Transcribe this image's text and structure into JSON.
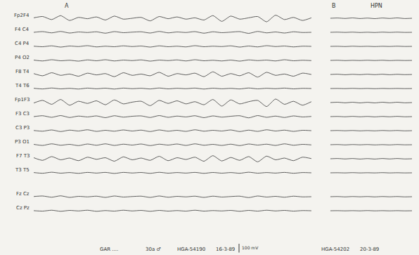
{
  "chart_data": [
    {
      "type": "line",
      "title": "A",
      "color": "#3a3a3a",
      "tick_labels": false,
      "x": [
        0,
        1,
        2,
        3,
        4,
        5,
        6,
        7,
        8,
        9,
        10,
        11,
        12,
        13,
        14,
        15,
        16,
        17,
        18,
        19,
        20,
        21,
        22,
        23,
        24,
        25,
        26,
        27,
        28,
        29,
        30,
        31
      ],
      "xlim": [
        0,
        31
      ],
      "ylim": [
        -80,
        80
      ],
      "calibration": {
        "value": 100,
        "label": "100 mV"
      },
      "footer": [
        "GAR ....",
        "30a ♂",
        "HGA-54190",
        "16-3-89"
      ],
      "series": [
        {
          "name": "Fp2F4",
          "values": [
            5,
            20,
            -15,
            30,
            -25,
            10,
            -5,
            15,
            -20,
            25,
            -10,
            0,
            10,
            -30,
            20,
            -5,
            15,
            -10,
            5,
            -20,
            30,
            -35,
            25,
            -10,
            5,
            20,
            -40,
            35,
            -15,
            10,
            -25,
            5
          ]
        },
        {
          "name": "F4 C4",
          "values": [
            0,
            8,
            -6,
            10,
            -8,
            4,
            -2,
            6,
            -10,
            8,
            -4,
            2,
            6,
            -8,
            10,
            -6,
            4,
            -2,
            8,
            -10,
            6,
            -4,
            2,
            8,
            -12,
            10,
            -6,
            4,
            -8,
            6,
            -2,
            0
          ]
        },
        {
          "name": "C4 P4",
          "values": [
            2,
            -4,
            6,
            -8,
            4,
            -2,
            8,
            -6,
            2,
            -4,
            6,
            -2,
            4,
            -8,
            6,
            -4,
            2,
            -6,
            8,
            -4,
            2,
            -2,
            6,
            -8,
            4,
            -6,
            8,
            -2,
            4,
            -6,
            2,
            0
          ]
        },
        {
          "name": "P4 O2",
          "values": [
            4,
            -6,
            8,
            -4,
            2,
            -8,
            6,
            -4,
            8,
            -6,
            4,
            -2,
            6,
            -8,
            4,
            -2,
            6,
            -6,
            8,
            -4,
            2,
            -6,
            4,
            -8,
            6,
            -2,
            4,
            -6,
            8,
            -4,
            2,
            -2
          ]
        },
        {
          "name": "F8 T4",
          "values": [
            10,
            -15,
            20,
            -10,
            5,
            -20,
            15,
            -5,
            10,
            -25,
            20,
            -10,
            5,
            -15,
            25,
            -20,
            10,
            -5,
            15,
            -25,
            30,
            -20,
            10,
            -15,
            20,
            -30,
            25,
            -10,
            5,
            -20,
            15,
            0
          ]
        },
        {
          "name": "T4 T6",
          "values": [
            3,
            -5,
            6,
            -4,
            2,
            -6,
            5,
            -3,
            4,
            -6,
            5,
            -2,
            3,
            -5,
            6,
            -4,
            3,
            -2,
            5,
            -6,
            4,
            -3,
            2,
            -5,
            6,
            -4,
            3,
            -2,
            5,
            -4,
            2,
            0
          ]
        },
        {
          "name": "Fp1F3",
          "values": [
            -5,
            25,
            -20,
            35,
            -30,
            15,
            -10,
            20,
            -25,
            30,
            -15,
            5,
            15,
            -35,
            25,
            -10,
            20,
            -15,
            10,
            -25,
            35,
            -40,
            30,
            -15,
            10,
            25,
            -45,
            40,
            -20,
            15,
            -30,
            10
          ]
        },
        {
          "name": "F3 C3",
          "values": [
            0,
            10,
            -8,
            12,
            -10,
            6,
            -4,
            8,
            -12,
            10,
            -6,
            4,
            8,
            -10,
            12,
            -8,
            6,
            -4,
            10,
            -12,
            8,
            -6,
            4,
            10,
            -14,
            12,
            -8,
            6,
            -10,
            8,
            -4,
            2
          ]
        },
        {
          "name": "C3 P3",
          "values": [
            2,
            -6,
            8,
            -10,
            6,
            -4,
            10,
            -8,
            4,
            -6,
            8,
            -4,
            6,
            -10,
            8,
            -6,
            4,
            -8,
            10,
            -6,
            4,
            -4,
            8,
            -10,
            6,
            -8,
            10,
            -4,
            6,
            -8,
            4,
            0
          ]
        },
        {
          "name": "P3 O1",
          "values": [
            4,
            -8,
            10,
            -6,
            4,
            -10,
            8,
            -6,
            10,
            -8,
            6,
            -4,
            8,
            -10,
            6,
            -4,
            8,
            -8,
            10,
            -6,
            4,
            -8,
            6,
            -10,
            8,
            -4,
            6,
            -8,
            10,
            -6,
            4,
            -2
          ]
        },
        {
          "name": "F7 T3",
          "values": [
            12,
            -18,
            25,
            -12,
            8,
            -22,
            18,
            -6,
            12,
            -28,
            22,
            -12,
            8,
            -18,
            28,
            -22,
            12,
            -8,
            18,
            -28,
            35,
            -25,
            15,
            -18,
            25,
            -35,
            30,
            -12,
            8,
            -22,
            18,
            2
          ]
        },
        {
          "name": "T3 T5",
          "values": [
            3,
            -5,
            7,
            -4,
            3,
            -6,
            5,
            -3,
            5,
            -7,
            5,
            -2,
            4,
            -6,
            6,
            -4,
            3,
            -3,
            5,
            -6,
            4,
            -4,
            3,
            -5,
            7,
            -4,
            3,
            -3,
            5,
            -5,
            3,
            0
          ]
        },
        {
          "name": "Fz Cz",
          "values": [
            2,
            8,
            -6,
            10,
            -8,
            4,
            -2,
            6,
            -8,
            8,
            -4,
            2,
            6,
            -8,
            8,
            -6,
            4,
            -2,
            6,
            -8,
            6,
            -4,
            2,
            6,
            -10,
            8,
            -4,
            4,
            -6,
            6,
            -2,
            0
          ]
        },
        {
          "name": "Cz Pz",
          "values": [
            1,
            -4,
            6,
            -6,
            4,
            -2,
            6,
            -6,
            2,
            -4,
            6,
            -2,
            4,
            -6,
            4,
            -4,
            2,
            -4,
            6,
            -4,
            2,
            -2,
            4,
            -6,
            4,
            -4,
            6,
            -2,
            4,
            -4,
            2,
            0
          ]
        }
      ]
    },
    {
      "type": "line",
      "title": "B",
      "subtitle": "HPN",
      "color": "#3a3a3a",
      "tick_labels": false,
      "x": [
        0,
        1,
        2,
        3,
        4,
        5,
        6,
        7,
        8,
        9,
        10,
        11
      ],
      "xlim": [
        0,
        11
      ],
      "ylim": [
        -80,
        80
      ],
      "footer": [
        "HGA-54202",
        "20-3-89"
      ],
      "series": [
        {
          "values": [
            0,
            3,
            -2,
            4,
            -3,
            2,
            -4,
            3,
            -2,
            4,
            -3,
            0
          ]
        },
        {
          "values": [
            0,
            2,
            -1,
            2,
            -2,
            1,
            -2,
            2,
            -1,
            2,
            -1,
            0
          ]
        },
        {
          "values": [
            0,
            1,
            -2,
            2,
            -1,
            1,
            -2,
            1,
            -1,
            2,
            -1,
            0
          ]
        },
        {
          "values": [
            0,
            2,
            -2,
            1,
            -1,
            2,
            -1,
            2,
            -2,
            1,
            -1,
            0
          ]
        },
        {
          "values": [
            0,
            3,
            -3,
            2,
            -2,
            3,
            -2,
            3,
            -3,
            2,
            -2,
            0
          ]
        },
        {
          "values": [
            0,
            1,
            -1,
            2,
            -1,
            1,
            -2,
            1,
            -1,
            1,
            -1,
            0
          ]
        },
        {
          "values": [
            0,
            4,
            -3,
            4,
            -4,
            3,
            -4,
            4,
            -3,
            4,
            -3,
            0
          ]
        },
        {
          "values": [
            0,
            2,
            -2,
            3,
            -2,
            2,
            -3,
            2,
            -2,
            3,
            -2,
            0
          ]
        },
        {
          "values": [
            0,
            2,
            -1,
            2,
            -2,
            1,
            -2,
            2,
            -1,
            2,
            -2,
            0
          ]
        },
        {
          "values": [
            0,
            2,
            -2,
            2,
            -1,
            2,
            -2,
            1,
            -2,
            2,
            -1,
            0
          ]
        },
        {
          "values": [
            0,
            3,
            -2,
            3,
            -3,
            2,
            -3,
            3,
            -2,
            3,
            -2,
            0
          ]
        },
        {
          "values": [
            0,
            1,
            -1,
            2,
            -1,
            1,
            -1,
            2,
            -1,
            1,
            -1,
            0
          ]
        },
        {
          "values": [
            0,
            2,
            -2,
            2,
            -1,
            2,
            -2,
            2,
            -1,
            2,
            -2,
            0
          ]
        },
        {
          "values": [
            0,
            1,
            -1,
            1,
            -1,
            2,
            -1,
            1,
            -1,
            1,
            -1,
            0
          ]
        }
      ]
    }
  ]
}
